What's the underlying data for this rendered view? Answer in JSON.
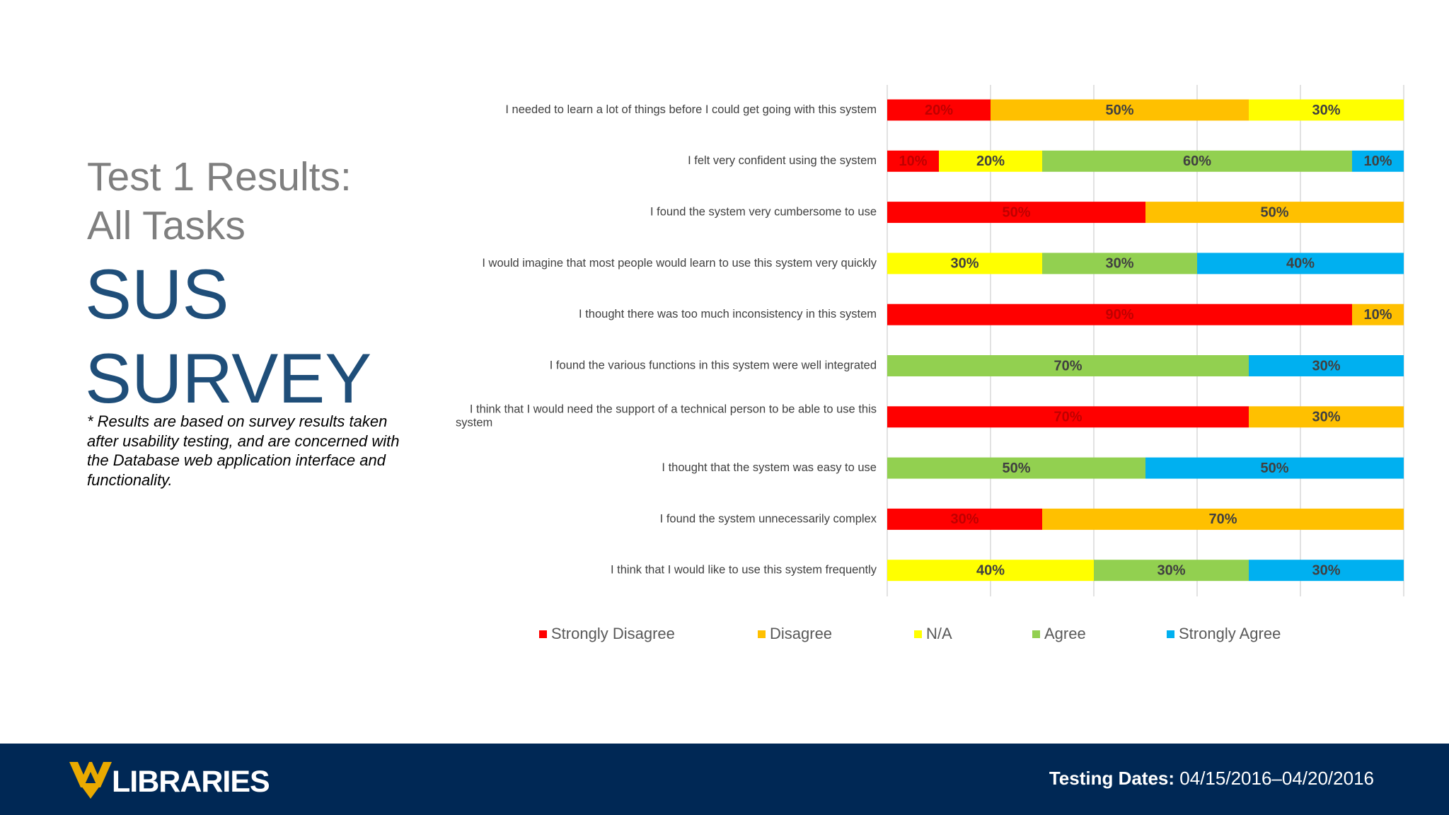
{
  "slide": {
    "subtitle_line1": "Test 1 Results:",
    "subtitle_line2": "All Tasks",
    "title_line1": "SUS",
    "title_line2": "SURVEY",
    "footnote": "* Results are based on survey results taken after usability testing, and are concerned with the Database web application interface and functionality."
  },
  "footer": {
    "logo_text": "LIBRARIES",
    "dates_label": "Testing Dates:",
    "dates_value": "04/15/2016–04/20/2016"
  },
  "chart_data": {
    "type": "bar",
    "orientation": "horizontal",
    "stacked": true,
    "percent": true,
    "xlim": [
      0,
      100
    ],
    "grid": true,
    "legend_position": "bottom",
    "categories": [
      "I needed to learn a lot of things before I could get going with this system",
      "I felt very confident using the system",
      "I found the system very cumbersome to use",
      "I would imagine that most people would learn to use this system very quickly",
      "I thought there was too much inconsistency in this system",
      "I found the various functions in this system were well integrated",
      "I think that I would need the support of a technical person to be able to use this system",
      "I thought that the system was easy to use",
      "I found the system unnecessarily complex",
      "I think that I would like to use this system frequently"
    ],
    "series": [
      {
        "name": "Strongly Disagree",
        "color": "#ff0000",
        "values": [
          20,
          10,
          50,
          0,
          90,
          0,
          70,
          0,
          30,
          0
        ]
      },
      {
        "name": "Disagree",
        "color": "#ffc000",
        "values": [
          50,
          0,
          50,
          0,
          10,
          0,
          30,
          0,
          70,
          0
        ]
      },
      {
        "name": "N/A",
        "color": "#ffff00",
        "values": [
          30,
          20,
          0,
          30,
          0,
          0,
          0,
          0,
          0,
          40
        ]
      },
      {
        "name": "Agree",
        "color": "#92d050",
        "values": [
          0,
          60,
          0,
          30,
          0,
          70,
          0,
          50,
          0,
          30
        ]
      },
      {
        "name": "Strongly Agree",
        "color": "#00b0f0",
        "values": [
          0,
          10,
          0,
          40,
          0,
          30,
          0,
          50,
          0,
          30
        ]
      }
    ]
  }
}
